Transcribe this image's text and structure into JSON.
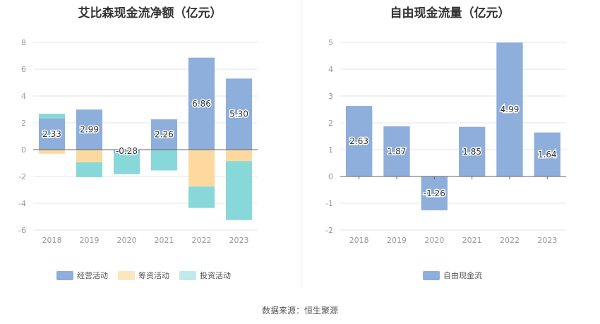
{
  "source_text": "数据来源：恒生聚源",
  "chart_data": [
    {
      "type": "bar",
      "stacked": true,
      "title": "艾比森现金流净额（亿元）",
      "categories": [
        "2018",
        "2019",
        "2020",
        "2021",
        "2022",
        "2023"
      ],
      "ylim": [
        -6,
        8
      ],
      "yticks": [
        -6,
        -4,
        -2,
        0,
        2,
        4,
        6,
        8
      ],
      "grid": true,
      "legend_position": "bottom",
      "series": [
        {
          "name": "经营活动",
          "color": "#8eaedc",
          "values": [
            2.33,
            2.99,
            -0.28,
            2.26,
            6.86,
            5.3
          ],
          "labels": [
            "2.33",
            "2.99",
            "-0.28",
            "2.26",
            "6.86",
            "5.30"
          ]
        },
        {
          "name": "筹资活动",
          "color": "#fdd9a0",
          "values": [
            -0.3,
            -0.95,
            0,
            0,
            -2.75,
            -0.85
          ]
        },
        {
          "name": "投资活动",
          "color": "#88d8da",
          "values": [
            0.35,
            -1.1,
            -1.55,
            -1.55,
            -1.6,
            -4.4
          ]
        }
      ]
    },
    {
      "type": "bar",
      "title": "自由现金流量（亿元）",
      "categories": [
        "2018",
        "2019",
        "2020",
        "2021",
        "2022",
        "2023"
      ],
      "ylim": [
        -2,
        5
      ],
      "yticks": [
        -2,
        -1,
        0,
        1,
        2,
        3,
        4,
        5
      ],
      "grid": true,
      "legend_position": "bottom",
      "series": [
        {
          "name": "自由现金流",
          "color": "#8eaedc",
          "values": [
            2.63,
            1.87,
            -1.26,
            1.85,
            4.99,
            1.64
          ],
          "labels": [
            "2.63",
            "1.87",
            "-1.26",
            "1.85",
            "4.99",
            "1.64"
          ]
        }
      ]
    }
  ]
}
